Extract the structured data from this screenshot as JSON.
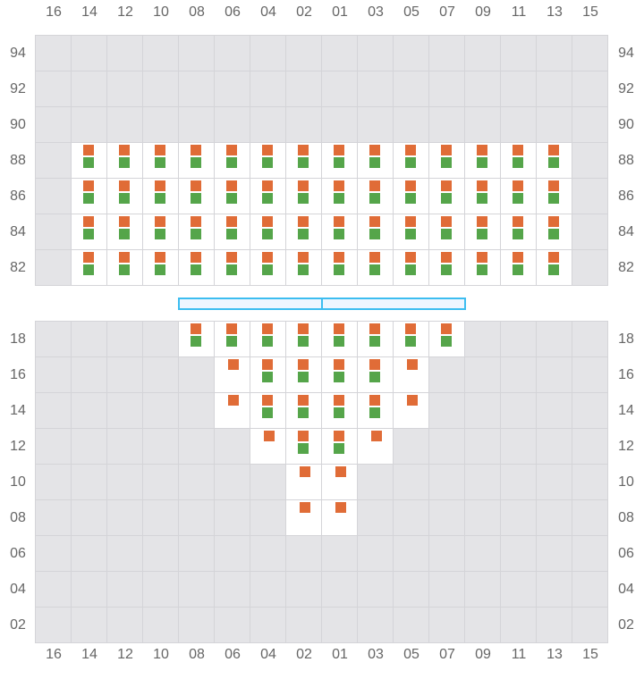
{
  "colors": {
    "orange": "#e06c37",
    "green": "#55a54a",
    "unavailable": "#e4e4e7",
    "available": "#ffffff",
    "aisle_border": "#3dbdf0"
  },
  "columns": [
    "16",
    "14",
    "12",
    "10",
    "08",
    "06",
    "04",
    "02",
    "01",
    "03",
    "05",
    "07",
    "09",
    "11",
    "13",
    "15"
  ],
  "legend_codes": {
    "B": "orange and green markers",
    "O": "orange marker only",
    "": "unavailable"
  },
  "top_section": {
    "rows": [
      {
        "label": "94",
        "cells": [
          "",
          "",
          "",
          "",
          "",
          "",
          "",
          "",
          "",
          "",
          "",
          "",
          "",
          "",
          "",
          ""
        ]
      },
      {
        "label": "92",
        "cells": [
          "",
          "",
          "",
          "",
          "",
          "",
          "",
          "",
          "",
          "",
          "",
          "",
          "",
          "",
          "",
          ""
        ]
      },
      {
        "label": "90",
        "cells": [
          "",
          "",
          "",
          "",
          "",
          "",
          "",
          "",
          "",
          "",
          "",
          "",
          "",
          "",
          "",
          ""
        ]
      },
      {
        "label": "88",
        "cells": [
          "",
          "B",
          "B",
          "B",
          "B",
          "B",
          "B",
          "B",
          "B",
          "B",
          "B",
          "B",
          "B",
          "B",
          "B",
          ""
        ]
      },
      {
        "label": "86",
        "cells": [
          "",
          "B",
          "B",
          "B",
          "B",
          "B",
          "B",
          "B",
          "B",
          "B",
          "B",
          "B",
          "B",
          "B",
          "B",
          ""
        ]
      },
      {
        "label": "84",
        "cells": [
          "",
          "B",
          "B",
          "B",
          "B",
          "B",
          "B",
          "B",
          "B",
          "B",
          "B",
          "B",
          "B",
          "B",
          "B",
          ""
        ]
      },
      {
        "label": "82",
        "cells": [
          "",
          "B",
          "B",
          "B",
          "B",
          "B",
          "B",
          "B",
          "B",
          "B",
          "B",
          "B",
          "B",
          "B",
          "B",
          ""
        ]
      }
    ]
  },
  "bottom_section": {
    "rows": [
      {
        "label": "18",
        "cells": [
          "",
          "",
          "",
          "",
          "B",
          "B",
          "B",
          "B",
          "B",
          "B",
          "B",
          "B",
          "",
          "",
          "",
          ""
        ]
      },
      {
        "label": "16",
        "cells": [
          "",
          "",
          "",
          "",
          "",
          "O",
          "B",
          "B",
          "B",
          "B",
          "O",
          "",
          "",
          "",
          "",
          ""
        ]
      },
      {
        "label": "14",
        "cells": [
          "",
          "",
          "",
          "",
          "",
          "O",
          "B",
          "B",
          "B",
          "B",
          "O",
          "",
          "",
          "",
          "",
          ""
        ]
      },
      {
        "label": "12",
        "cells": [
          "",
          "",
          "",
          "",
          "",
          "",
          "O",
          "B",
          "B",
          "O",
          "",
          "",
          "",
          "",
          "",
          ""
        ]
      },
      {
        "label": "10",
        "cells": [
          "",
          "",
          "",
          "",
          "",
          "",
          "",
          "O",
          "O",
          "",
          "",
          "",
          "",
          "",
          "",
          ""
        ]
      },
      {
        "label": "08",
        "cells": [
          "",
          "",
          "",
          "",
          "",
          "",
          "",
          "O",
          "O",
          "",
          "",
          "",
          "",
          "",
          "",
          ""
        ]
      },
      {
        "label": "06",
        "cells": [
          "",
          "",
          "",
          "",
          "",
          "",
          "",
          "",
          "",
          "",
          "",
          "",
          "",
          "",
          "",
          ""
        ]
      },
      {
        "label": "04",
        "cells": [
          "",
          "",
          "",
          "",
          "",
          "",
          "",
          "",
          "",
          "",
          "",
          "",
          "",
          "",
          "",
          ""
        ]
      },
      {
        "label": "02",
        "cells": [
          "",
          "",
          "",
          "",
          "",
          "",
          "",
          "",
          "",
          "",
          "",
          "",
          "",
          "",
          "",
          ""
        ]
      }
    ]
  }
}
